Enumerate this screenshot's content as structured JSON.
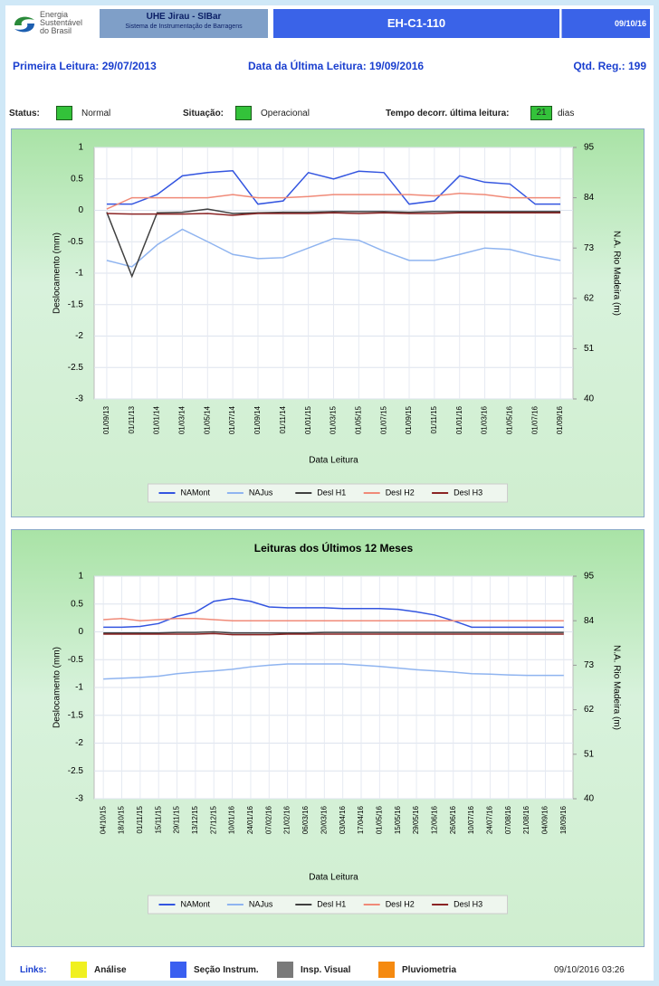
{
  "header": {
    "logo": [
      "Energia",
      "Sustentável",
      "do Brasil"
    ],
    "system_title": "UHE Jirau - SIBar",
    "system_subtitle": "Sistema de Instrumentação de Barragens",
    "instrument": "EH-C1-110",
    "date": "09/10/16"
  },
  "info": {
    "first_reading": "Primeira Leitura: 29/07/2013",
    "last_reading": "Data da Última Leitura: 19/09/2016",
    "count": "Qtd. Reg.: 199"
  },
  "status": {
    "status_label": "Status:",
    "status_value": "Normal",
    "situation_label": "Situação:",
    "situation_value": "Operacional",
    "elapsed_label": "Tempo decorr. última leitura:",
    "elapsed_value": "21",
    "elapsed_unit": "dias"
  },
  "chart_data": [
    {
      "type": "line",
      "x_label": "Data Leitura",
      "y_label": "Deslocamento (mm)",
      "y2_label": "N.A. Rio Madeira (m)",
      "categories": [
        "01/09/13",
        "01/11/13",
        "01/01/14",
        "01/03/14",
        "01/05/14",
        "01/07/14",
        "01/09/14",
        "01/11/14",
        "01/01/15",
        "01/03/15",
        "01/05/15",
        "01/07/15",
        "01/09/15",
        "01/11/15",
        "01/01/16",
        "01/03/16",
        "01/05/16",
        "01/07/16",
        "01/09/16"
      ],
      "ylim": [
        -3,
        1
      ],
      "yticks": [
        -3,
        -2.5,
        -2,
        -1.5,
        -1,
        -0.5,
        0,
        0.5,
        1
      ],
      "y2lim": [
        40,
        95
      ],
      "y2ticks": [
        40,
        51,
        62,
        73,
        84,
        95
      ],
      "grid": true,
      "series": [
        {
          "name": "NAMont",
          "color": "#3355e0",
          "axis": "y2",
          "values": [
            82.6,
            82.6,
            84.7,
            88.8,
            89.5,
            89.9,
            82.6,
            83.3,
            89.5,
            88.1,
            89.8,
            89.5,
            82.6,
            83.3,
            88.8,
            87.4,
            87.0,
            82.6,
            82.6
          ]
        },
        {
          "name": "NAJus",
          "color": "#8fb4f0",
          "axis": "y2",
          "values": [
            70.3,
            68.9,
            73.7,
            77.1,
            74.4,
            71.6,
            70.7,
            70.9,
            73.0,
            75.1,
            74.7,
            72.3,
            70.3,
            70.3,
            71.6,
            73.0,
            72.7,
            71.3,
            70.3
          ]
        },
        {
          "name": "Desl H1",
          "color": "#404040",
          "values": [
            -0.03,
            -1.05,
            -0.04,
            -0.03,
            0.02,
            -0.05,
            -0.04,
            -0.03,
            -0.03,
            -0.02,
            -0.02,
            -0.02,
            -0.03,
            -0.02,
            -0.02,
            -0.02,
            -0.02,
            -0.02,
            -0.02
          ]
        },
        {
          "name": "Desl H2",
          "color": "#f08a78",
          "values": [
            0.02,
            0.2,
            0.2,
            0.2,
            0.2,
            0.25,
            0.2,
            0.2,
            0.22,
            0.25,
            0.25,
            0.25,
            0.25,
            0.23,
            0.27,
            0.25,
            0.2,
            0.2,
            0.2
          ]
        },
        {
          "name": "Desl H3",
          "color": "#8b2424",
          "values": [
            -0.05,
            -0.06,
            -0.06,
            -0.06,
            -0.05,
            -0.08,
            -0.05,
            -0.05,
            -0.05,
            -0.04,
            -0.05,
            -0.04,
            -0.05,
            -0.05,
            -0.04,
            -0.04,
            -0.04,
            -0.04,
            -0.04
          ]
        }
      ]
    },
    {
      "type": "line",
      "title": "Leituras dos Últimos 12 Meses",
      "x_label": "Data Leitura",
      "y_label": "Deslocamento (mm)",
      "y2_label": "N.A. Rio Madeira (m)",
      "categories": [
        "04/10/15",
        "18/10/15",
        "01/11/15",
        "15/11/15",
        "29/11/15",
        "13/12/15",
        "27/12/15",
        "10/01/16",
        "24/01/16",
        "07/02/16",
        "21/02/16",
        "06/03/16",
        "20/03/16",
        "03/04/16",
        "17/04/16",
        "01/05/16",
        "15/05/16",
        "29/05/16",
        "12/06/16",
        "26/06/16",
        "10/07/16",
        "24/07/16",
        "07/08/16",
        "21/08/16",
        "04/09/16",
        "18/09/16"
      ],
      "ylim": [
        -3,
        1
      ],
      "yticks": [
        -3,
        -2.5,
        -2,
        -1.5,
        -1,
        -0.5,
        0,
        0.5,
        1
      ],
      "y2lim": [
        40,
        95
      ],
      "y2ticks": [
        40,
        51,
        62,
        73,
        84,
        95
      ],
      "grid": true,
      "series": [
        {
          "name": "NAMont",
          "color": "#3355e0",
          "axis": "y2",
          "values": [
            82.4,
            82.4,
            82.6,
            83.3,
            85.1,
            86.1,
            88.8,
            89.5,
            88.8,
            87.4,
            87.2,
            87.2,
            87.2,
            87.0,
            87.0,
            87.0,
            86.8,
            86.2,
            85.4,
            84.0,
            82.4,
            82.4,
            82.4,
            82.4,
            82.4,
            82.4
          ]
        },
        {
          "name": "NAJus",
          "color": "#8fb4f0",
          "axis": "y2",
          "values": [
            69.6,
            69.8,
            70.0,
            70.3,
            70.9,
            71.3,
            71.6,
            72.0,
            72.6,
            73.0,
            73.3,
            73.3,
            73.3,
            73.3,
            73.0,
            72.7,
            72.3,
            71.9,
            71.6,
            71.3,
            70.9,
            70.8,
            70.6,
            70.5,
            70.5,
            70.5
          ]
        },
        {
          "name": "Desl H1",
          "color": "#404040",
          "values": [
            -0.02,
            -0.02,
            -0.02,
            -0.02,
            -0.01,
            -0.01,
            0.0,
            -0.02,
            -0.02,
            -0.02,
            -0.02,
            -0.02,
            -0.01,
            -0.01,
            -0.01,
            -0.01,
            -0.01,
            -0.01,
            -0.01,
            -0.01,
            -0.01,
            -0.01,
            -0.01,
            -0.01,
            -0.01,
            -0.01
          ]
        },
        {
          "name": "Desl H2",
          "color": "#f08a78",
          "values": [
            0.22,
            0.24,
            0.2,
            0.22,
            0.24,
            0.24,
            0.22,
            0.2,
            0.2,
            0.2,
            0.2,
            0.2,
            0.2,
            0.2,
            0.2,
            0.2,
            0.2,
            0.2,
            0.2,
            0.2,
            0.2,
            0.2,
            0.2,
            0.2,
            0.2,
            0.2
          ]
        },
        {
          "name": "Desl H3",
          "color": "#8b2424",
          "values": [
            -0.04,
            -0.04,
            -0.04,
            -0.04,
            -0.04,
            -0.04,
            -0.03,
            -0.05,
            -0.05,
            -0.05,
            -0.04,
            -0.04,
            -0.04,
            -0.04,
            -0.04,
            -0.04,
            -0.04,
            -0.04,
            -0.04,
            -0.04,
            -0.04,
            -0.04,
            -0.04,
            -0.04,
            -0.04,
            -0.04
          ]
        }
      ]
    }
  ],
  "links": {
    "label": "Links:",
    "items": [
      {
        "name": "Análise",
        "color": "#f0f020"
      },
      {
        "name": "Seção Instrum.",
        "color": "#3a5ff0"
      },
      {
        "name": "Insp. Visual",
        "color": "#7a7a7a"
      },
      {
        "name": "Pluviometria",
        "color": "#f58a10"
      }
    ]
  },
  "timestamp": "09/10/2016 03:26"
}
